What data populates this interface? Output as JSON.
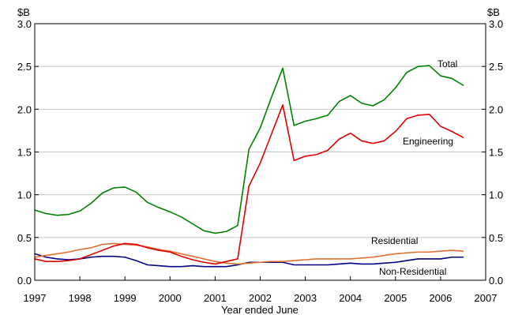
{
  "chart_data": {
    "type": "line",
    "xlabel": "Year ended June",
    "y_unit_left": "$B",
    "y_unit_right": "$B",
    "xlim": [
      1997,
      2007
    ],
    "ylim": [
      0,
      3.0
    ],
    "x_ticks": [
      1997,
      1998,
      1999,
      2000,
      2001,
      2002,
      2003,
      2004,
      2005,
      2006,
      2007
    ],
    "x_tick_labels": [
      "1997",
      "1998",
      "1999",
      "2000",
      "2001",
      "2002",
      "2003",
      "2004",
      "2005",
      "2006",
      "2007"
    ],
    "y_ticks": [
      0,
      0.5,
      1.0,
      1.5,
      2.0,
      2.5,
      3.0
    ],
    "y_tick_labels": [
      "0.0",
      "0.5",
      "1.0",
      "1.5",
      "2.0",
      "2.5",
      "3.0"
    ],
    "grid": "horizontal",
    "legend": "inline labels",
    "series": [
      {
        "name": "Total",
        "color": "#008000",
        "label_value": [
          1997.0,
          0.82
        ],
        "x": [
          1997.0,
          1997.25,
          1997.5,
          1997.75,
          1998.0,
          1998.25,
          1998.5,
          1998.75,
          1999.0,
          1999.25,
          1999.5,
          1999.75,
          2000.0,
          2000.25,
          2000.5,
          2000.75,
          2001.0,
          2001.25,
          2001.5,
          2001.75,
          2002.0,
          2002.25,
          2002.5,
          2002.75,
          2003.0,
          2003.25,
          2003.5,
          2003.75,
          2004.0,
          2004.25,
          2004.5,
          2004.75,
          2005.0,
          2005.25,
          2005.5,
          2005.75,
          2006.0,
          2006.25,
          2006.5
        ],
        "values": [
          0.82,
          0.78,
          0.76,
          0.77,
          0.81,
          0.9,
          1.02,
          1.08,
          1.09,
          1.03,
          0.91,
          0.85,
          0.8,
          0.74,
          0.66,
          0.58,
          0.55,
          0.57,
          0.64,
          1.53,
          1.78,
          2.14,
          2.48,
          1.81,
          1.86,
          1.89,
          1.93,
          2.09,
          2.16,
          2.07,
          2.04,
          2.11,
          2.25,
          2.43,
          2.5,
          2.51,
          2.39,
          2.36,
          2.28
        ]
      },
      {
        "name": "Engineering",
        "color": "#e00000",
        "x": [
          1997.0,
          1997.25,
          1997.5,
          1997.75,
          1998.0,
          1998.25,
          1998.5,
          1998.75,
          1999.0,
          1999.25,
          1999.5,
          1999.75,
          2000.0,
          2000.25,
          2000.5,
          2000.75,
          2001.0,
          2001.25,
          2001.5,
          2001.75,
          2002.0,
          2002.25,
          2002.5,
          2002.75,
          2003.0,
          2003.25,
          2003.5,
          2003.75,
          2004.0,
          2004.25,
          2004.5,
          2004.75,
          2005.0,
          2005.25,
          2005.5,
          2005.75,
          2006.0,
          2006.25,
          2006.5
        ],
        "values": [
          0.25,
          0.22,
          0.22,
          0.23,
          0.25,
          0.3,
          0.35,
          0.4,
          0.43,
          0.42,
          0.38,
          0.35,
          0.33,
          0.28,
          0.24,
          0.21,
          0.19,
          0.22,
          0.25,
          1.1,
          1.37,
          1.71,
          2.05,
          1.4,
          1.45,
          1.47,
          1.52,
          1.65,
          1.72,
          1.63,
          1.6,
          1.63,
          1.74,
          1.89,
          1.93,
          1.94,
          1.8,
          1.74,
          1.67
        ]
      },
      {
        "name": "Residential",
        "color": "#e07030",
        "x": [
          1997.0,
          1997.25,
          1997.5,
          1997.75,
          1998.0,
          1998.25,
          1998.5,
          1998.75,
          1999.0,
          1999.25,
          1999.5,
          1999.75,
          2000.0,
          2000.25,
          2000.5,
          2000.75,
          2001.0,
          2001.25,
          2001.5,
          2001.75,
          2002.0,
          2002.25,
          2002.5,
          2002.75,
          2003.0,
          2003.25,
          2003.5,
          2003.75,
          2004.0,
          2004.25,
          2004.5,
          2004.75,
          2005.0,
          2005.25,
          2005.5,
          2005.75,
          2006.0,
          2006.25,
          2006.5
        ],
        "values": [
          0.27,
          0.29,
          0.31,
          0.33,
          0.36,
          0.38,
          0.42,
          0.43,
          0.42,
          0.41,
          0.39,
          0.36,
          0.34,
          0.31,
          0.28,
          0.25,
          0.22,
          0.2,
          0.19,
          0.2,
          0.21,
          0.22,
          0.22,
          0.23,
          0.24,
          0.25,
          0.25,
          0.25,
          0.25,
          0.26,
          0.27,
          0.29,
          0.31,
          0.32,
          0.33,
          0.33,
          0.34,
          0.35,
          0.34
        ]
      },
      {
        "name": "Non-Residential",
        "color": "#000080",
        "x": [
          1997.0,
          1997.25,
          1997.5,
          1997.75,
          1998.0,
          1998.25,
          1998.5,
          1998.75,
          1999.0,
          1999.25,
          1999.5,
          1999.75,
          2000.0,
          2000.25,
          2000.5,
          2000.75,
          2001.0,
          2001.25,
          2001.5,
          2001.75,
          2002.0,
          2002.25,
          2002.5,
          2002.75,
          2003.0,
          2003.25,
          2003.5,
          2003.75,
          2004.0,
          2004.25,
          2004.5,
          2004.75,
          2005.0,
          2005.25,
          2005.5,
          2005.75,
          2006.0,
          2006.25,
          2006.5
        ],
        "values": [
          0.31,
          0.27,
          0.25,
          0.24,
          0.25,
          0.27,
          0.28,
          0.28,
          0.27,
          0.23,
          0.18,
          0.17,
          0.16,
          0.16,
          0.17,
          0.16,
          0.16,
          0.16,
          0.18,
          0.21,
          0.21,
          0.21,
          0.21,
          0.18,
          0.18,
          0.18,
          0.18,
          0.19,
          0.2,
          0.19,
          0.19,
          0.2,
          0.21,
          0.23,
          0.25,
          0.25,
          0.25,
          0.27,
          0.27
        ]
      }
    ]
  }
}
